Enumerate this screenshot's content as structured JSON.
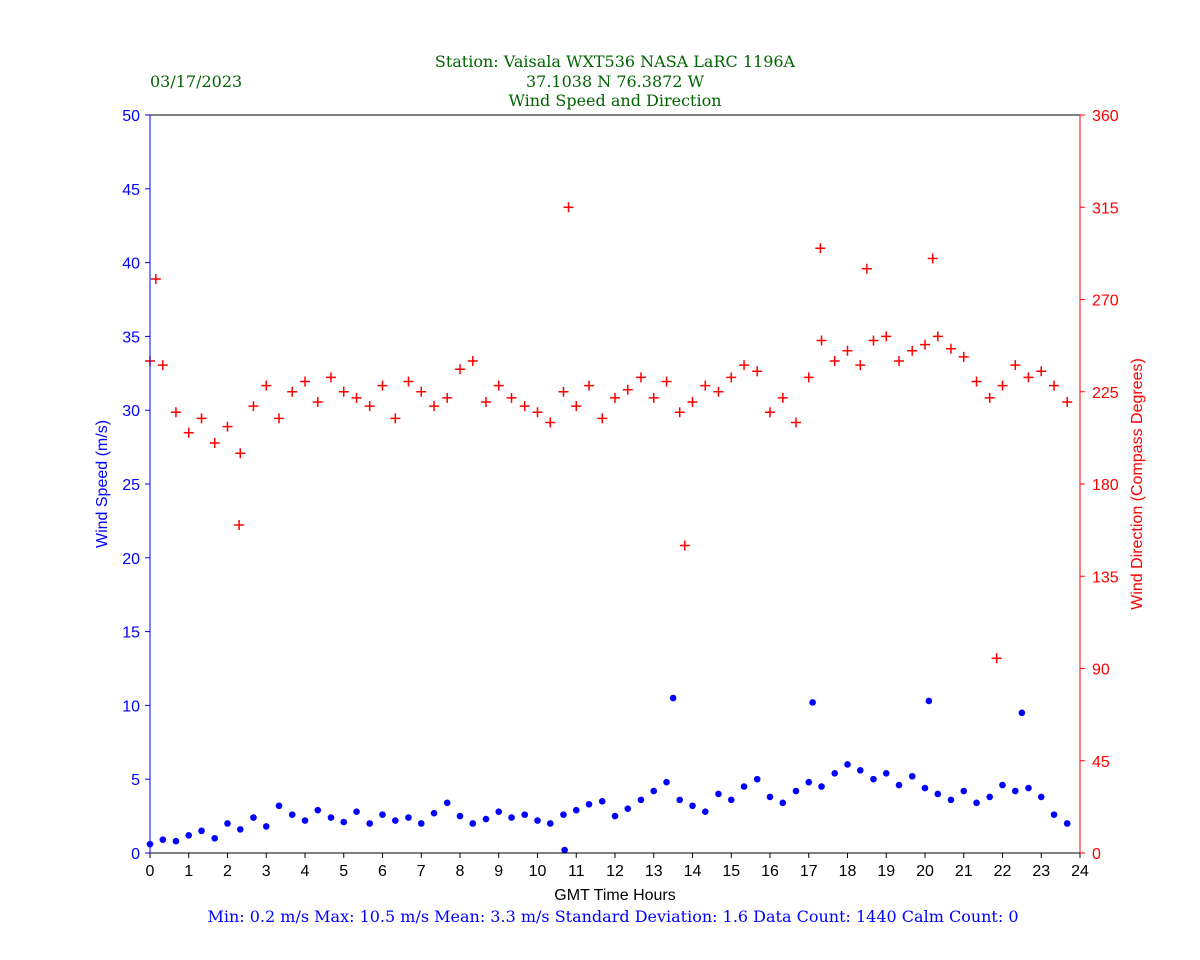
{
  "header": {
    "date": "03/17/2023",
    "title_line1": "Station:  Vaisala WXT536  NASA LaRC 1196A",
    "title_line2": "37.1038 N 76.3872 W",
    "title_line3": "Wind Speed and Direction"
  },
  "footer": {
    "stats": "Min: 0.2 m/s   Max: 10.5 m/s   Mean: 3.3 m/s  Standard Deviation: 1.6  Data Count: 1440  Calm Count:  0"
  },
  "colors": {
    "title": "#006400",
    "speed": "#0000ff",
    "direction": "#ff0000",
    "stats": "#0000ff"
  },
  "chart_data": {
    "type": "scatter",
    "title": "Wind Speed and Direction",
    "xlabel": "GMT Time Hours",
    "ylabel": "Wind Speed (m/s)",
    "y2label": "Wind Direction (Compass Degrees)",
    "xlim": [
      0,
      24
    ],
    "ylim": [
      0,
      50
    ],
    "y2lim": [
      0,
      360
    ],
    "xticks": [
      0,
      1,
      2,
      3,
      4,
      5,
      6,
      7,
      8,
      9,
      10,
      11,
      12,
      13,
      14,
      15,
      16,
      17,
      18,
      19,
      20,
      21,
      22,
      23,
      24
    ],
    "yticks": [
      0,
      5,
      10,
      15,
      20,
      25,
      30,
      35,
      40,
      45,
      50
    ],
    "y2ticks": [
      0,
      45,
      90,
      135,
      180,
      225,
      270,
      315,
      360
    ],
    "grid": false,
    "note": "sampled representation of 1440 one-minute observations",
    "series": [
      {
        "name": "Wind Speed",
        "axis": "left",
        "marker": "dot",
        "color": "#0000ff",
        "x": [
          0,
          0.33,
          0.67,
          1,
          1.33,
          1.67,
          2,
          2.33,
          2.67,
          3,
          3.33,
          3.67,
          4,
          4.33,
          4.67,
          5,
          5.33,
          5.67,
          6,
          6.33,
          6.67,
          7,
          7.33,
          7.67,
          8,
          8.33,
          8.67,
          9,
          9.33,
          9.67,
          10,
          10.33,
          10.67,
          11,
          11.33,
          11.67,
          12,
          12.33,
          12.67,
          13,
          13.33,
          13.67,
          14,
          14.33,
          14.67,
          15,
          15.33,
          15.67,
          16,
          16.33,
          16.67,
          17,
          17.33,
          17.67,
          18,
          18.33,
          18.67,
          19,
          19.33,
          19.67,
          20,
          20.33,
          20.67,
          21,
          21.33,
          21.67,
          22,
          22.33,
          22.67,
          23,
          23.33,
          23.67,
          13.5,
          20.1,
          17.1,
          22.5,
          10.7
        ],
        "y": [
          0.6,
          0.9,
          0.8,
          1.2,
          1.5,
          1.0,
          2.0,
          1.6,
          2.4,
          1.8,
          3.2,
          2.6,
          2.2,
          2.9,
          2.4,
          2.1,
          2.8,
          2.0,
          2.6,
          2.2,
          2.4,
          2.0,
          2.7,
          3.4,
          2.5,
          2.0,
          2.3,
          2.8,
          2.4,
          2.6,
          2.2,
          2.0,
          2.6,
          2.9,
          3.3,
          3.5,
          2.5,
          3.0,
          3.6,
          4.2,
          4.8,
          3.6,
          3.2,
          2.8,
          4.0,
          3.6,
          4.5,
          5.0,
          3.8,
          3.4,
          4.2,
          4.8,
          4.5,
          5.4,
          6.0,
          5.6,
          5.0,
          5.4,
          4.6,
          5.2,
          4.4,
          4.0,
          3.6,
          4.2,
          3.4,
          3.8,
          4.6,
          4.2,
          4.4,
          3.8,
          2.6,
          2.0,
          10.5,
          10.3,
          10.2,
          9.5,
          0.2
        ]
      },
      {
        "name": "Wind Direction",
        "axis": "right",
        "marker": "plus",
        "color": "#ff0000",
        "x": [
          0,
          0.33,
          0.67,
          1,
          1.33,
          1.67,
          2,
          2.33,
          2.67,
          3,
          3.33,
          3.67,
          4,
          4.33,
          4.67,
          5,
          5.33,
          5.67,
          6,
          6.33,
          6.67,
          7,
          7.33,
          7.67,
          8,
          8.33,
          8.67,
          9,
          9.33,
          9.67,
          10,
          10.33,
          10.67,
          11,
          11.33,
          11.67,
          12,
          12.33,
          12.67,
          13,
          13.33,
          13.67,
          14,
          14.33,
          14.67,
          15,
          15.33,
          15.67,
          16,
          16.33,
          16.67,
          17,
          17.33,
          17.67,
          18,
          18.33,
          18.67,
          19,
          19.33,
          19.67,
          20,
          20.33,
          20.67,
          21,
          21.33,
          21.67,
          22,
          22.33,
          22.67,
          23,
          23.33,
          23.67,
          10.8,
          17.3,
          20.2,
          21.85,
          13.8,
          0.15,
          2.3,
          18.5
        ],
        "y": [
          240,
          238,
          215,
          205,
          212,
          200,
          208,
          195,
          218,
          228,
          212,
          225,
          230,
          220,
          232,
          225,
          222,
          218,
          228,
          212,
          230,
          225,
          218,
          222,
          236,
          240,
          220,
          228,
          222,
          218,
          215,
          210,
          225,
          218,
          228,
          212,
          222,
          226,
          232,
          222,
          230,
          215,
          220,
          228,
          225,
          232,
          238,
          235,
          215,
          222,
          210,
          232,
          250,
          240,
          245,
          238,
          250,
          252,
          240,
          245,
          248,
          252,
          246,
          242,
          230,
          222,
          228,
          238,
          232,
          235,
          228,
          220,
          315,
          295,
          290,
          95,
          150,
          280,
          160,
          285
        ]
      }
    ]
  }
}
